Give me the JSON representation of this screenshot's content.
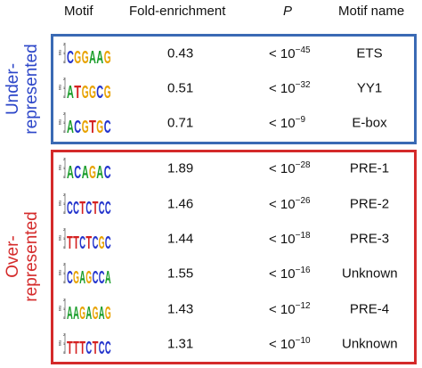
{
  "headers": {
    "motif": "Motif",
    "fold": "Fold-enrichment",
    "p": "P",
    "name": "Motif name"
  },
  "groups": {
    "under": {
      "label_line1": "Under-",
      "label_line2": "represented",
      "color": "#2b45c8"
    },
    "over": {
      "label_line1": "Over-",
      "label_line2": "represented",
      "color": "#d42a2a"
    }
  },
  "logo_axis_label": "bits",
  "logo_axis_ticks": [
    "2",
    "1",
    "0"
  ],
  "rows": [
    {
      "logo": "CGGAAG",
      "fold": "0.43",
      "p_prefix": "< 10",
      "p_exp": "−45",
      "name": "ETS"
    },
    {
      "logo": "ATGGCG",
      "fold": "0.51",
      "p_prefix": "< 10",
      "p_exp": "−32",
      "name": "YY1"
    },
    {
      "logo": "ACGTGC",
      "fold": "0.71",
      "p_prefix": "< 10",
      "p_exp": "−9",
      "name": "E-box"
    },
    {
      "logo": "ACAGAC",
      "fold": "1.89",
      "p_prefix": "< 10",
      "p_exp": "−28",
      "name": "PRE-1"
    },
    {
      "logo": "CCTCTCC",
      "fold": "1.46",
      "p_prefix": "< 10",
      "p_exp": "−26",
      "name": "PRE-2"
    },
    {
      "logo": "TTCTCGC",
      "fold": "1.44",
      "p_prefix": "< 10",
      "p_exp": "−18",
      "name": "PRE-3"
    },
    {
      "logo": "CGAGCCA",
      "fold": "1.55",
      "p_prefix": "< 10",
      "p_exp": "−16",
      "name": "Unknown"
    },
    {
      "logo": "AAGAGAG",
      "fold": "1.43",
      "p_prefix": "< 10",
      "p_exp": "−12",
      "name": "PRE-4"
    },
    {
      "logo": "TTTCTCC",
      "fold": "1.31",
      "p_prefix": "< 10",
      "p_exp": "−10",
      "name": "Unknown"
    }
  ],
  "nucleotide_colors": {
    "A": "#1a9d2a",
    "C": "#2233cc",
    "G": "#e8a200",
    "T": "#d42020"
  }
}
